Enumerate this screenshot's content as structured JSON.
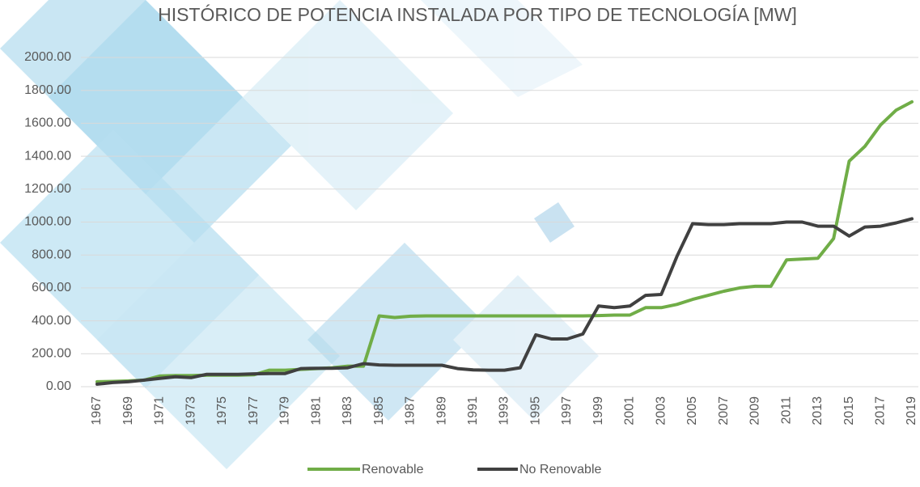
{
  "chart_data": {
    "type": "line",
    "title": "HISTÓRICO DE POTENCIA INSTALADA POR TIPO DE TECNOLOGÍA [MW]",
    "categories": [
      "1967",
      null,
      "1969",
      null,
      "1971",
      null,
      "1973",
      null,
      "1975",
      null,
      "1977",
      null,
      "1979",
      null,
      "1981",
      null,
      "1983",
      null,
      "1985",
      null,
      "1987",
      null,
      "1989",
      null,
      "1991",
      null,
      "1993",
      null,
      "1995",
      null,
      "1997",
      null,
      "1999",
      null,
      "2001",
      null,
      "2003",
      null,
      "2005",
      null,
      "2007",
      null,
      "2009",
      null,
      "2011",
      null,
      "2013",
      null,
      "2015",
      null,
      "2017",
      null,
      "2019"
    ],
    "series": [
      {
        "name": "Renovable",
        "color": "#70ad47",
        "values": [
          30,
          32,
          35,
          40,
          65,
          68,
          68,
          70,
          70,
          70,
          72,
          100,
          100,
          105,
          110,
          115,
          125,
          125,
          430,
          420,
          428,
          430,
          430,
          430,
          430,
          430,
          430,
          430,
          430,
          430,
          430,
          430,
          432,
          435,
          435,
          480,
          480,
          500,
          530,
          555,
          580,
          600,
          610,
          610,
          770,
          775,
          780,
          900,
          1370,
          1460,
          1590,
          1680,
          1730
        ]
      },
      {
        "name": "No Renovable",
        "color": "#404040",
        "values": [
          15,
          25,
          30,
          40,
          50,
          60,
          55,
          75,
          75,
          75,
          78,
          80,
          80,
          110,
          112,
          112,
          115,
          140,
          132,
          130,
          130,
          130,
          130,
          110,
          102,
          100,
          100,
          115,
          315,
          290,
          290,
          320,
          490,
          480,
          490,
          555,
          560,
          790,
          990,
          985,
          985,
          990,
          990,
          990,
          1000,
          1000,
          975,
          975,
          915,
          970,
          975,
          995,
          1020
        ]
      }
    ],
    "ylim": [
      0,
      2000
    ],
    "yticks": [
      {
        "value": 0,
        "label": "0.00"
      },
      {
        "value": 200,
        "label": "200.00"
      },
      {
        "value": 400,
        "label": "400.00"
      },
      {
        "value": 600,
        "label": "600.00"
      },
      {
        "value": 800,
        "label": "800.00"
      },
      {
        "value": 1000,
        "label": "1000.00"
      },
      {
        "value": 1200,
        "label": "1200.00"
      },
      {
        "value": 1400,
        "label": "1400.00"
      },
      {
        "value": 1600,
        "label": "1600.00"
      },
      {
        "value": 1800,
        "label": "1800.00"
      },
      {
        "value": 2000,
        "label": "2000.00"
      }
    ],
    "grid": true,
    "legend": "bottom"
  }
}
